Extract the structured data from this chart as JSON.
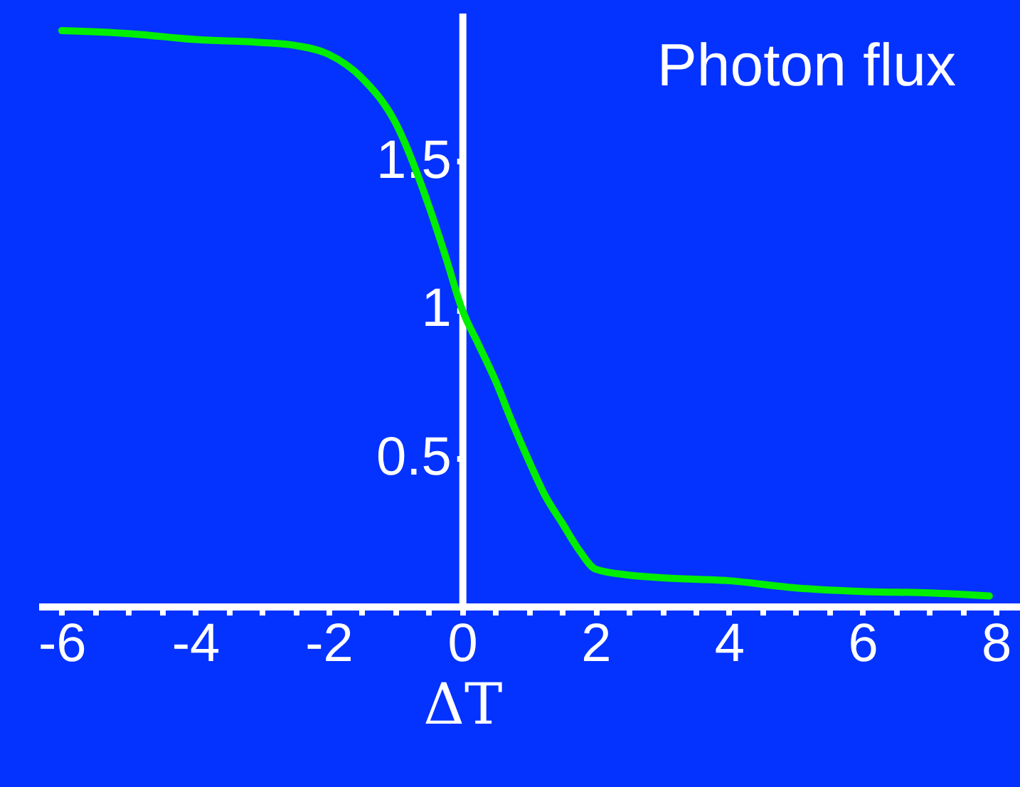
{
  "chart_data": {
    "type": "line",
    "annotations": [
      "Photon flux"
    ],
    "xlabel": "ΔT",
    "x": [
      -6,
      -5,
      -4,
      -3,
      -2.5,
      -2,
      -1.5,
      -1,
      -0.5,
      -0.25,
      0,
      0.25,
      0.5,
      0.75,
      1,
      1.25,
      1.5,
      1.75,
      2,
      2.5,
      3,
      4,
      5,
      6,
      7,
      7.9
    ],
    "series": [
      {
        "color": "#00ee00",
        "values": [
          1.94,
          1.93,
          1.91,
          1.9,
          1.89,
          1.86,
          1.78,
          1.63,
          1.35,
          1.18,
          1.0,
          0.88,
          0.76,
          0.62,
          0.49,
          0.37,
          0.28,
          0.19,
          0.125,
          0.105,
          0.096,
          0.086,
          0.062,
          0.05,
          0.045,
          0.035
        ]
      }
    ],
    "xlim": [
      -6.35,
      8.36
    ],
    "ylim": [
      0,
      2.0
    ],
    "xticks": [
      -6,
      {
        "value": -5.5,
        "label": null
      },
      {
        "value": -5,
        "label": null
      },
      {
        "value": -4.5,
        "label": null
      },
      -4,
      {
        "value": -3.5,
        "label": null
      },
      {
        "value": -3,
        "label": null
      },
      {
        "value": -2.5,
        "label": null
      },
      -2,
      {
        "value": -1.5,
        "label": null
      },
      {
        "value": -1,
        "label": null
      },
      {
        "value": -0.5,
        "label": null
      },
      0,
      {
        "value": 0.5,
        "label": null
      },
      {
        "value": 1,
        "label": null
      },
      {
        "value": 1.5,
        "label": null
      },
      2,
      {
        "value": 2.5,
        "label": null
      },
      {
        "value": 3,
        "label": null
      },
      {
        "value": 3.5,
        "label": null
      },
      4,
      {
        "value": 4.5,
        "label": null
      },
      {
        "value": 5,
        "label": null
      },
      {
        "value": 5.5,
        "label": null
      },
      6,
      {
        "value": 6.5,
        "label": null
      },
      {
        "value": 7,
        "label": null
      },
      {
        "value": 7.5,
        "label": null
      },
      8
    ],
    "yticks": [
      0.5,
      1,
      1.5
    ],
    "grid": false
  }
}
